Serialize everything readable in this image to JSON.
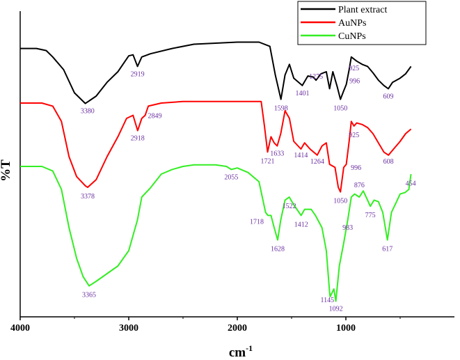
{
  "chart_data": {
    "type": "line",
    "title": "",
    "xlabel": "cm",
    "xlabel_superscript": "-1",
    "ylabel": "%T",
    "xlim": [
      4000,
      0
    ],
    "x_tick_labels": [
      "4000",
      "3000",
      "2000",
      "1000"
    ],
    "x_ticks": [
      4000,
      3000,
      2000,
      1000
    ],
    "legend_position": "top-right",
    "series": [
      {
        "name": "Plant extract",
        "color": "#000000",
        "points": [
          [
            4000,
            20
          ],
          [
            3850,
            20
          ],
          [
            3760,
            18
          ],
          [
            3700,
            12
          ],
          [
            3600,
            0
          ],
          [
            3500,
            -22
          ],
          [
            3400,
            -32
          ],
          [
            3300,
            -25
          ],
          [
            3200,
            -12
          ],
          [
            3100,
            -2
          ],
          [
            3000,
            13
          ],
          [
            2960,
            14
          ],
          [
            2919,
            3
          ],
          [
            2880,
            12
          ],
          [
            2800,
            15
          ],
          [
            2600,
            20
          ],
          [
            2400,
            24
          ],
          [
            2200,
            25
          ],
          [
            2000,
            26
          ],
          [
            1800,
            26
          ],
          [
            1700,
            22
          ],
          [
            1650,
            -5
          ],
          [
            1598,
            -28
          ],
          [
            1560,
            -5
          ],
          [
            1520,
            5
          ],
          [
            1480,
            -8
          ],
          [
            1401,
            -15
          ],
          [
            1350,
            -6
          ],
          [
            1300,
            -7
          ],
          [
            1275,
            -10
          ],
          [
            1230,
            -4
          ],
          [
            1180,
            -2
          ],
          [
            1150,
            -18
          ],
          [
            1120,
            -2
          ],
          [
            1080,
            -16
          ],
          [
            1050,
            -28
          ],
          [
            1020,
            -20
          ],
          [
            996,
            -14
          ],
          [
            970,
            0
          ],
          [
            950,
            12
          ],
          [
            925,
            10
          ],
          [
            900,
            8
          ],
          [
            850,
            5
          ],
          [
            800,
            3
          ],
          [
            750,
            -3
          ],
          [
            700,
            -10
          ],
          [
            650,
            -15
          ],
          [
            609,
            -18
          ],
          [
            570,
            -12
          ],
          [
            500,
            -8
          ],
          [
            450,
            -4
          ],
          [
            400,
            3
          ]
        ]
      },
      {
        "name": "AuNPs",
        "color": "#ff0000",
        "points": [
          [
            4000,
            20
          ],
          [
            3800,
            20
          ],
          [
            3700,
            18
          ],
          [
            3620,
            8
          ],
          [
            3550,
            -15
          ],
          [
            3480,
            -28
          ],
          [
            3400,
            -34
          ],
          [
            3378,
            -35
          ],
          [
            3300,
            -30
          ],
          [
            3200,
            -15
          ],
          [
            3100,
            -2
          ],
          [
            3020,
            10
          ],
          [
            2960,
            12
          ],
          [
            2918,
            2
          ],
          [
            2880,
            10
          ],
          [
            2849,
            12
          ],
          [
            2820,
            18
          ],
          [
            2700,
            20
          ],
          [
            2500,
            21
          ],
          [
            2300,
            21
          ],
          [
            2100,
            21
          ],
          [
            1900,
            21
          ],
          [
            1780,
            21
          ],
          [
            1750,
            5
          ],
          [
            1721,
            -12
          ],
          [
            1690,
            -2
          ],
          [
            1660,
            -6
          ],
          [
            1633,
            -8
          ],
          [
            1600,
            0
          ],
          [
            1560,
            15
          ],
          [
            1520,
            10
          ],
          [
            1480,
            -5
          ],
          [
            1414,
            -10
          ],
          [
            1380,
            -6
          ],
          [
            1330,
            -10
          ],
          [
            1264,
            -14
          ],
          [
            1220,
            -8
          ],
          [
            1180,
            -6
          ],
          [
            1150,
            -20
          ],
          [
            1100,
            -22
          ],
          [
            1070,
            -35
          ],
          [
            1050,
            -38
          ],
          [
            1020,
            -22
          ],
          [
            996,
            -20
          ],
          [
            970,
            -5
          ],
          [
            950,
            8
          ],
          [
            925,
            5
          ],
          [
            900,
            7
          ],
          [
            850,
            6
          ],
          [
            800,
            4
          ],
          [
            750,
            0
          ],
          [
            700,
            -6
          ],
          [
            650,
            -12
          ],
          [
            608,
            -14
          ],
          [
            560,
            -10
          ],
          [
            500,
            -5
          ],
          [
            450,
            0
          ],
          [
            400,
            3
          ]
        ]
      },
      {
        "name": "CuNPs",
        "color": "#33ee22",
        "points": [
          [
            4000,
            20
          ],
          [
            3800,
            20
          ],
          [
            3700,
            17
          ],
          [
            3620,
            5
          ],
          [
            3550,
            -20
          ],
          [
            3480,
            -40
          ],
          [
            3420,
            -52
          ],
          [
            3365,
            -58
          ],
          [
            3300,
            -55
          ],
          [
            3200,
            -50
          ],
          [
            3100,
            -45
          ],
          [
            3000,
            -35
          ],
          [
            2960,
            -25
          ],
          [
            2920,
            -15
          ],
          [
            2880,
            0
          ],
          [
            2800,
            6
          ],
          [
            2700,
            15
          ],
          [
            2600,
            18
          ],
          [
            2500,
            20
          ],
          [
            2400,
            21
          ],
          [
            2200,
            21
          ],
          [
            2100,
            20
          ],
          [
            2055,
            18
          ],
          [
            2000,
            19
          ],
          [
            1900,
            16
          ],
          [
            1800,
            10
          ],
          [
            1740,
            -10
          ],
          [
            1718,
            -12
          ],
          [
            1690,
            -12
          ],
          [
            1660,
            -20
          ],
          [
            1628,
            -28
          ],
          [
            1600,
            -15
          ],
          [
            1560,
            -2
          ],
          [
            1522,
            0
          ],
          [
            1480,
            -5
          ],
          [
            1412,
            -12
          ],
          [
            1380,
            -8
          ],
          [
            1320,
            -8
          ],
          [
            1280,
            -12
          ],
          [
            1220,
            -20
          ],
          [
            1180,
            -35
          ],
          [
            1150,
            -62
          ],
          [
            1145,
            -65
          ],
          [
            1110,
            -60
          ],
          [
            1092,
            -68
          ],
          [
            1060,
            -45
          ],
          [
            1020,
            -30
          ],
          [
            983,
            -15
          ],
          [
            950,
            0
          ],
          [
            920,
            2
          ],
          [
            876,
            0
          ],
          [
            840,
            4
          ],
          [
            800,
            -2
          ],
          [
            775,
            -6
          ],
          [
            740,
            -2
          ],
          [
            700,
            -3
          ],
          [
            660,
            -10
          ],
          [
            617,
            -28
          ],
          [
            580,
            -10
          ],
          [
            540,
            -4
          ],
          [
            500,
            2
          ],
          [
            454,
            3
          ],
          [
            420,
            5
          ],
          [
            400,
            15
          ]
        ]
      }
    ],
    "annotations": [
      {
        "text": "2919",
        "series": 0,
        "x": 2919,
        "dy": 14
      },
      {
        "text": "3380",
        "series": 0,
        "x": 3380,
        "dy": 16
      },
      {
        "text": "1598",
        "series": 0,
        "x": 1598,
        "dy": 16
      },
      {
        "text": "1401",
        "series": 0,
        "x": 1401,
        "dy": 14
      },
      {
        "text": "1275",
        "series": 0,
        "x": 1275,
        "dy": -2
      },
      {
        "text": "1050",
        "series": 0,
        "x": 1050,
        "dy": 16
      },
      {
        "text": "996",
        "series": 0,
        "x": 996,
        "dy": -2,
        "dx": 12
      },
      {
        "text": "925",
        "series": 0,
        "x": 925,
        "dy": 16
      },
      {
        "text": "609",
        "series": 0,
        "x": 609,
        "dy": 14
      },
      {
        "text": "2918",
        "series": 1,
        "x": 2918,
        "dy": 14
      },
      {
        "text": "2849",
        "series": 1,
        "x": 2849,
        "dy": 4,
        "dx": 14
      },
      {
        "text": "3378",
        "series": 1,
        "x": 3378,
        "dy": 16
      },
      {
        "text": "1721",
        "series": 1,
        "x": 1721,
        "dy": 16
      },
      {
        "text": "1633",
        "series": 1,
        "x": 1633,
        "dy": 14
      },
      {
        "text": "1414",
        "series": 1,
        "x": 1414,
        "dy": 12
      },
      {
        "text": "1264",
        "series": 1,
        "x": 1264,
        "dy": 12
      },
      {
        "text": "1050",
        "series": 1,
        "x": 1050,
        "dy": 16
      },
      {
        "text": "996",
        "series": 1,
        "x": 996,
        "dy": 8,
        "dx": 14
      },
      {
        "text": "925",
        "series": 1,
        "x": 925,
        "dy": 16
      },
      {
        "text": "608",
        "series": 1,
        "x": 608,
        "dy": 12
      },
      {
        "text": "2055",
        "series": 2,
        "x": 2055,
        "dy": 14
      },
      {
        "text": "3365",
        "series": 2,
        "x": 3365,
        "dy": 16
      },
      {
        "text": "1718",
        "series": 2,
        "x": 1718,
        "dy": 12,
        "dx": -16
      },
      {
        "text": "1628",
        "series": 2,
        "x": 1628,
        "dy": 16
      },
      {
        "text": "1522",
        "series": 2,
        "x": 1522,
        "dy": 16
      },
      {
        "text": "1412",
        "series": 2,
        "x": 1412,
        "dy": 16
      },
      {
        "text": "1145",
        "series": 2,
        "x": 1145,
        "dy": 8,
        "dx": -4
      },
      {
        "text": "1092",
        "series": 2,
        "x": 1092,
        "dy": 14
      },
      {
        "text": "983",
        "series": 2,
        "x": 983,
        "dy": 14
      },
      {
        "text": "876",
        "series": 2,
        "x": 876,
        "dy": -14
      },
      {
        "text": "775",
        "series": 2,
        "x": 775,
        "dy": 16
      },
      {
        "text": "617",
        "series": 2,
        "x": 617,
        "dy": 16
      },
      {
        "text": "454",
        "series": 2,
        "x": 454,
        "dy": -10,
        "dx": 8
      }
    ]
  }
}
